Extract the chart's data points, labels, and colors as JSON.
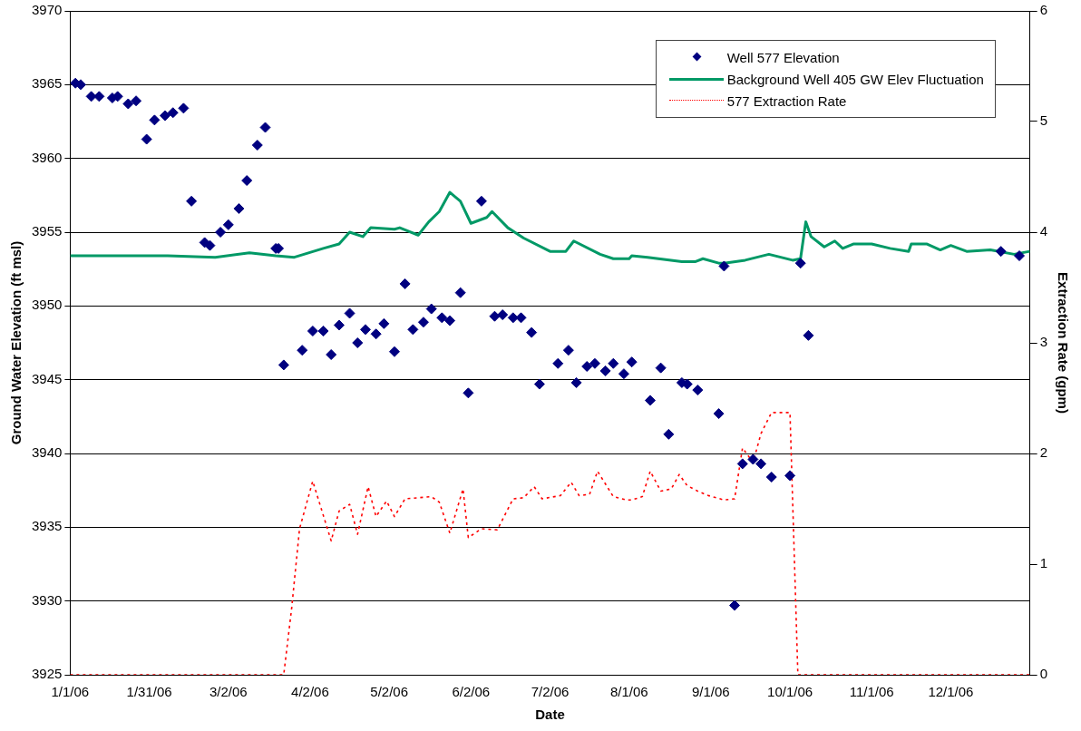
{
  "chart_data": {
    "type": "line",
    "xlabel": "Date",
    "ylabel": "Ground Water Elevation (ft msl)",
    "y2label": "Extraction Rate (gpm)",
    "xlim": [
      "2006-01-01",
      "2006-12-31"
    ],
    "xticks": [
      {
        "value": "2006-01-01",
        "label": "1/1/06"
      },
      {
        "value": "2006-01-31",
        "label": "1/31/06"
      },
      {
        "value": "2006-03-02",
        "label": "3/2/06"
      },
      {
        "value": "2006-04-02",
        "label": "4/2/06"
      },
      {
        "value": "2006-05-02",
        "label": "5/2/06"
      },
      {
        "value": "2006-06-02",
        "label": "6/2/06"
      },
      {
        "value": "2006-07-02",
        "label": "7/2/06"
      },
      {
        "value": "2006-08-01",
        "label": "8/1/06"
      },
      {
        "value": "2006-09-01",
        "label": "9/1/06"
      },
      {
        "value": "2006-10-01",
        "label": "10/1/06"
      },
      {
        "value": "2006-11-01",
        "label": "11/1/06"
      },
      {
        "value": "2006-12-01",
        "label": "12/1/06"
      }
    ],
    "ylim": [
      3925,
      3970
    ],
    "yticks": [
      3925,
      3930,
      3935,
      3940,
      3945,
      3950,
      3955,
      3960,
      3965,
      3970
    ],
    "y2lim": [
      0,
      6
    ],
    "y2ticks": [
      0,
      1,
      2,
      3,
      4,
      5,
      6
    ],
    "grid": "y",
    "legend": "top right",
    "series": [
      {
        "name": "Well 577 Elevation",
        "type": "scatter",
        "marker": "diamond",
        "color": "#000080",
        "x": [
          "2006-01-03",
          "2006-01-05",
          "2006-01-09",
          "2006-01-12",
          "2006-01-17",
          "2006-01-19",
          "2006-01-23",
          "2006-01-26",
          "2006-01-30",
          "2006-02-02",
          "2006-02-06",
          "2006-02-09",
          "2006-02-13",
          "2006-02-16",
          "2006-02-21",
          "2006-02-23",
          "2006-02-27",
          "2006-03-02",
          "2006-03-06",
          "2006-03-09",
          "2006-03-13",
          "2006-03-16",
          "2006-03-20",
          "2006-03-21",
          "2006-03-23",
          "2006-03-30",
          "2006-04-03",
          "2006-04-07",
          "2006-04-10",
          "2006-04-13",
          "2006-04-17",
          "2006-04-20",
          "2006-04-23",
          "2006-04-27",
          "2006-04-30",
          "2006-05-04",
          "2006-05-08",
          "2006-05-11",
          "2006-05-15",
          "2006-05-18",
          "2006-05-22",
          "2006-05-25",
          "2006-05-29",
          "2006-06-01",
          "2006-06-06",
          "2006-06-11",
          "2006-06-14",
          "2006-06-18",
          "2006-06-21",
          "2006-06-25",
          "2006-06-28",
          "2006-07-05",
          "2006-07-09",
          "2006-07-12",
          "2006-07-16",
          "2006-07-19",
          "2006-07-23",
          "2006-07-26",
          "2006-07-30",
          "2006-08-02",
          "2006-08-09",
          "2006-08-13",
          "2006-08-16",
          "2006-08-21",
          "2006-08-23",
          "2006-08-27",
          "2006-09-04",
          "2006-09-06",
          "2006-09-10",
          "2006-09-13",
          "2006-09-17",
          "2006-09-20",
          "2006-09-24",
          "2006-10-01",
          "2006-10-05",
          "2006-10-08",
          "2006-12-20",
          "2006-12-27"
        ],
        "values": [
          3965.1,
          3965.0,
          3964.2,
          3964.2,
          3964.1,
          3964.2,
          3963.7,
          3963.9,
          3961.3,
          3962.6,
          3962.9,
          3963.1,
          3963.4,
          3957.1,
          3954.3,
          3954.1,
          3955.0,
          3955.5,
          3956.6,
          3958.5,
          3960.9,
          3962.1,
          3953.9,
          3953.9,
          3946.0,
          3947.0,
          3948.3,
          3948.3,
          3946.7,
          3948.7,
          3949.5,
          3947.5,
          3948.4,
          3948.1,
          3948.8,
          3946.9,
          3951.5,
          3948.4,
          3948.9,
          3949.8,
          3949.2,
          3949.0,
          3950.9,
          3944.1,
          3957.1,
          3949.3,
          3949.4,
          3949.2,
          3949.2,
          3948.2,
          3944.7,
          3946.1,
          3947.0,
          3944.8,
          3945.9,
          3946.1,
          3945.6,
          3946.1,
          3945.4,
          3946.2,
          3943.6,
          3945.8,
          3941.3,
          3944.8,
          3944.7,
          3944.3,
          3942.7,
          3952.7,
          3929.7,
          3939.3,
          3939.6,
          3939.3,
          3938.4,
          3938.5,
          3952.9,
          3948.0,
          3953.7,
          3953.4
        ]
      },
      {
        "name": "Background Well 405 GW Elev Fluctuation",
        "type": "line",
        "line_style": "solid",
        "color": "#009966",
        "x": [
          "2006-01-01",
          "2006-01-21",
          "2006-02-07",
          "2006-02-25",
          "2006-03-10",
          "2006-03-20",
          "2006-03-27",
          "2006-04-07",
          "2006-04-13",
          "2006-04-17",
          "2006-04-22",
          "2006-04-25",
          "2006-05-04",
          "2006-05-06",
          "2006-05-13",
          "2006-05-17",
          "2006-05-21",
          "2006-05-25",
          "2006-05-29",
          "2006-06-02",
          "2006-06-08",
          "2006-06-10",
          "2006-06-16",
          "2006-06-22",
          "2006-07-02",
          "2006-07-08",
          "2006-07-11",
          "2006-07-21",
          "2006-07-26",
          "2006-08-01",
          "2006-08-02",
          "2006-08-08",
          "2006-08-21",
          "2006-08-26",
          "2006-08-29",
          "2006-09-04",
          "2006-09-06",
          "2006-09-14",
          "2006-09-23",
          "2006-10-02",
          "2006-10-05",
          "2006-10-07",
          "2006-10-09",
          "2006-10-14",
          "2006-10-18",
          "2006-10-21",
          "2006-10-25",
          "2006-11-01",
          "2006-11-08",
          "2006-11-15",
          "2006-11-16",
          "2006-11-22",
          "2006-11-27",
          "2006-12-01",
          "2006-12-07",
          "2006-12-16",
          "2006-12-25",
          "2006-12-31"
        ],
        "values": [
          3953.4,
          3953.4,
          3953.4,
          3953.3,
          3953.6,
          3953.4,
          3953.3,
          3953.9,
          3954.2,
          3955.0,
          3954.7,
          3955.3,
          3955.2,
          3955.3,
          3954.8,
          3955.7,
          3956.4,
          3957.7,
          3957.1,
          3955.6,
          3956.0,
          3956.4,
          3955.3,
          3954.6,
          3953.7,
          3953.7,
          3954.4,
          3953.5,
          3953.2,
          3953.2,
          3953.4,
          3953.3,
          3953.0,
          3953.0,
          3953.2,
          3952.9,
          3952.9,
          3953.1,
          3953.5,
          3953.1,
          3953.2,
          3955.7,
          3954.7,
          3954.0,
          3954.4,
          3953.9,
          3954.2,
          3954.2,
          3953.9,
          3953.7,
          3954.2,
          3954.2,
          3953.8,
          3954.1,
          3953.7,
          3953.8,
          3953.5,
          3953.7
        ]
      },
      {
        "name": "577 Extraction Rate",
        "type": "line",
        "line_style": "dotted",
        "axis": "y2",
        "color": "#ff0000",
        "x": [
          "2006-01-01",
          "2006-03-14",
          "2006-03-23",
          "2006-03-26",
          "2006-03-29",
          "2006-04-03",
          "2006-04-10",
          "2006-04-13",
          "2006-04-17",
          "2006-04-20",
          "2006-04-24",
          "2006-04-27",
          "2006-05-01",
          "2006-05-04",
          "2006-05-08",
          "2006-05-18",
          "2006-05-21",
          "2006-05-25",
          "2006-05-30",
          "2006-06-01",
          "2006-06-06",
          "2006-06-12",
          "2006-06-18",
          "2006-06-22",
          "2006-06-26",
          "2006-06-29",
          "2006-07-06",
          "2006-07-10",
          "2006-07-13",
          "2006-07-17",
          "2006-07-20",
          "2006-07-26",
          "2006-07-31",
          "2006-08-02",
          "2006-08-06",
          "2006-08-09",
          "2006-08-13",
          "2006-08-17",
          "2006-08-20",
          "2006-08-23",
          "2006-08-27",
          "2006-08-31",
          "2006-09-06",
          "2006-09-10",
          "2006-09-13",
          "2006-09-17",
          "2006-09-20",
          "2006-09-24",
          "2006-10-01",
          "2006-10-04",
          "2006-12-31"
        ],
        "values": [
          0,
          0,
          0,
          0.6,
          1.32,
          1.75,
          1.21,
          1.48,
          1.54,
          1.27,
          1.7,
          1.43,
          1.57,
          1.43,
          1.59,
          1.61,
          1.56,
          1.28,
          1.68,
          1.24,
          1.32,
          1.31,
          1.59,
          1.6,
          1.7,
          1.59,
          1.62,
          1.74,
          1.62,
          1.63,
          1.84,
          1.61,
          1.58,
          1.58,
          1.61,
          1.84,
          1.66,
          1.68,
          1.81,
          1.71,
          1.66,
          1.62,
          1.58,
          1.59,
          2.05,
          1.92,
          2.18,
          2.37,
          2.37,
          0,
          0
        ]
      }
    ]
  }
}
